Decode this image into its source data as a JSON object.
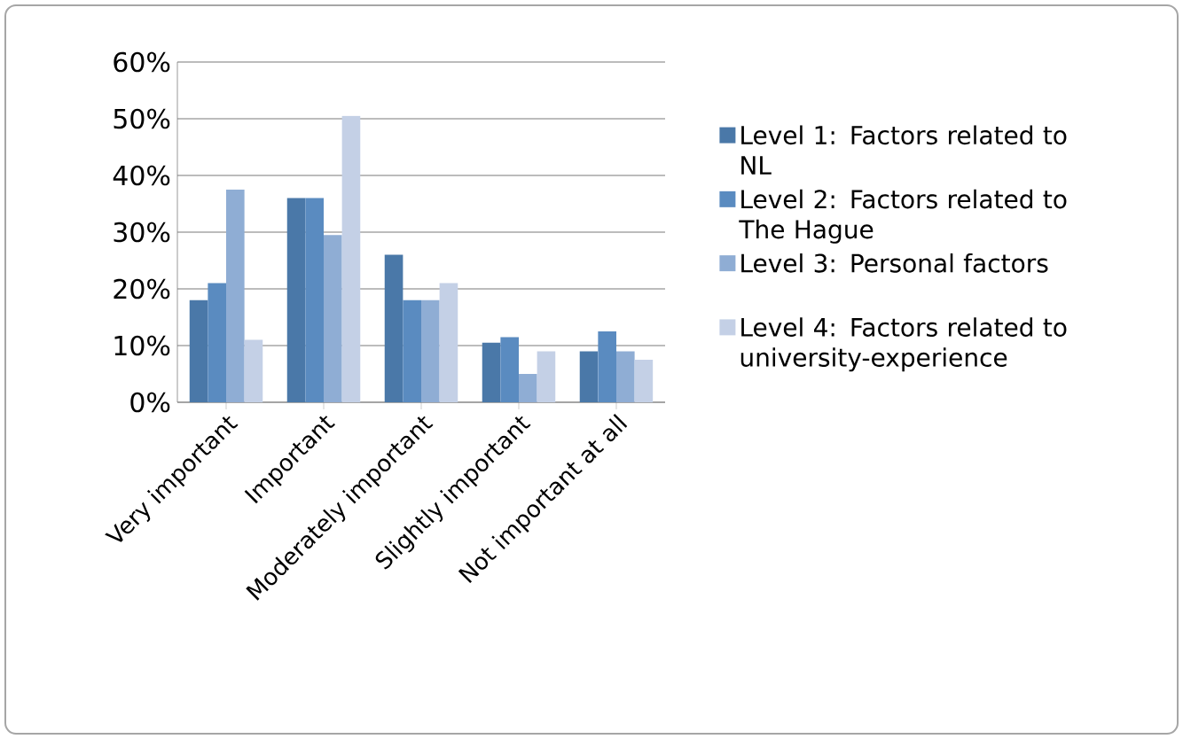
{
  "chart_data": {
    "type": "bar",
    "categories": [
      "Very important",
      "Important",
      "Moderately important",
      "Slightly important",
      "Not important at all"
    ],
    "series": [
      {
        "name": "Level 1: Factors related to NL",
        "color": "#4a78a8",
        "values": [
          18,
          36,
          26,
          10.5,
          9
        ]
      },
      {
        "name": "Level 2: Factors related to The Hague",
        "color": "#5a8bc0",
        "values": [
          21,
          36,
          18,
          11.5,
          12.5
        ]
      },
      {
        "name": "Level 3: Personal factors",
        "color": "#8fadd4",
        "values": [
          37.5,
          29.5,
          18,
          5,
          9
        ]
      },
      {
        "name": "Level 4: Factors related to university-experience",
        "color": "#c4d0e6",
        "values": [
          11,
          50.5,
          21,
          9,
          7.5
        ]
      }
    ],
    "ylim": [
      0,
      60
    ],
    "yticks": [
      {
        "value": 0,
        "label": "0%"
      },
      {
        "value": 10,
        "label": "10%"
      },
      {
        "value": 20,
        "label": "20%"
      },
      {
        "value": 30,
        "label": "30%"
      },
      {
        "value": 40,
        "label": "40%"
      },
      {
        "value": 50,
        "label": "50%"
      },
      {
        "value": 60,
        "label": "60%"
      }
    ],
    "grid": "y",
    "legend": "right"
  }
}
